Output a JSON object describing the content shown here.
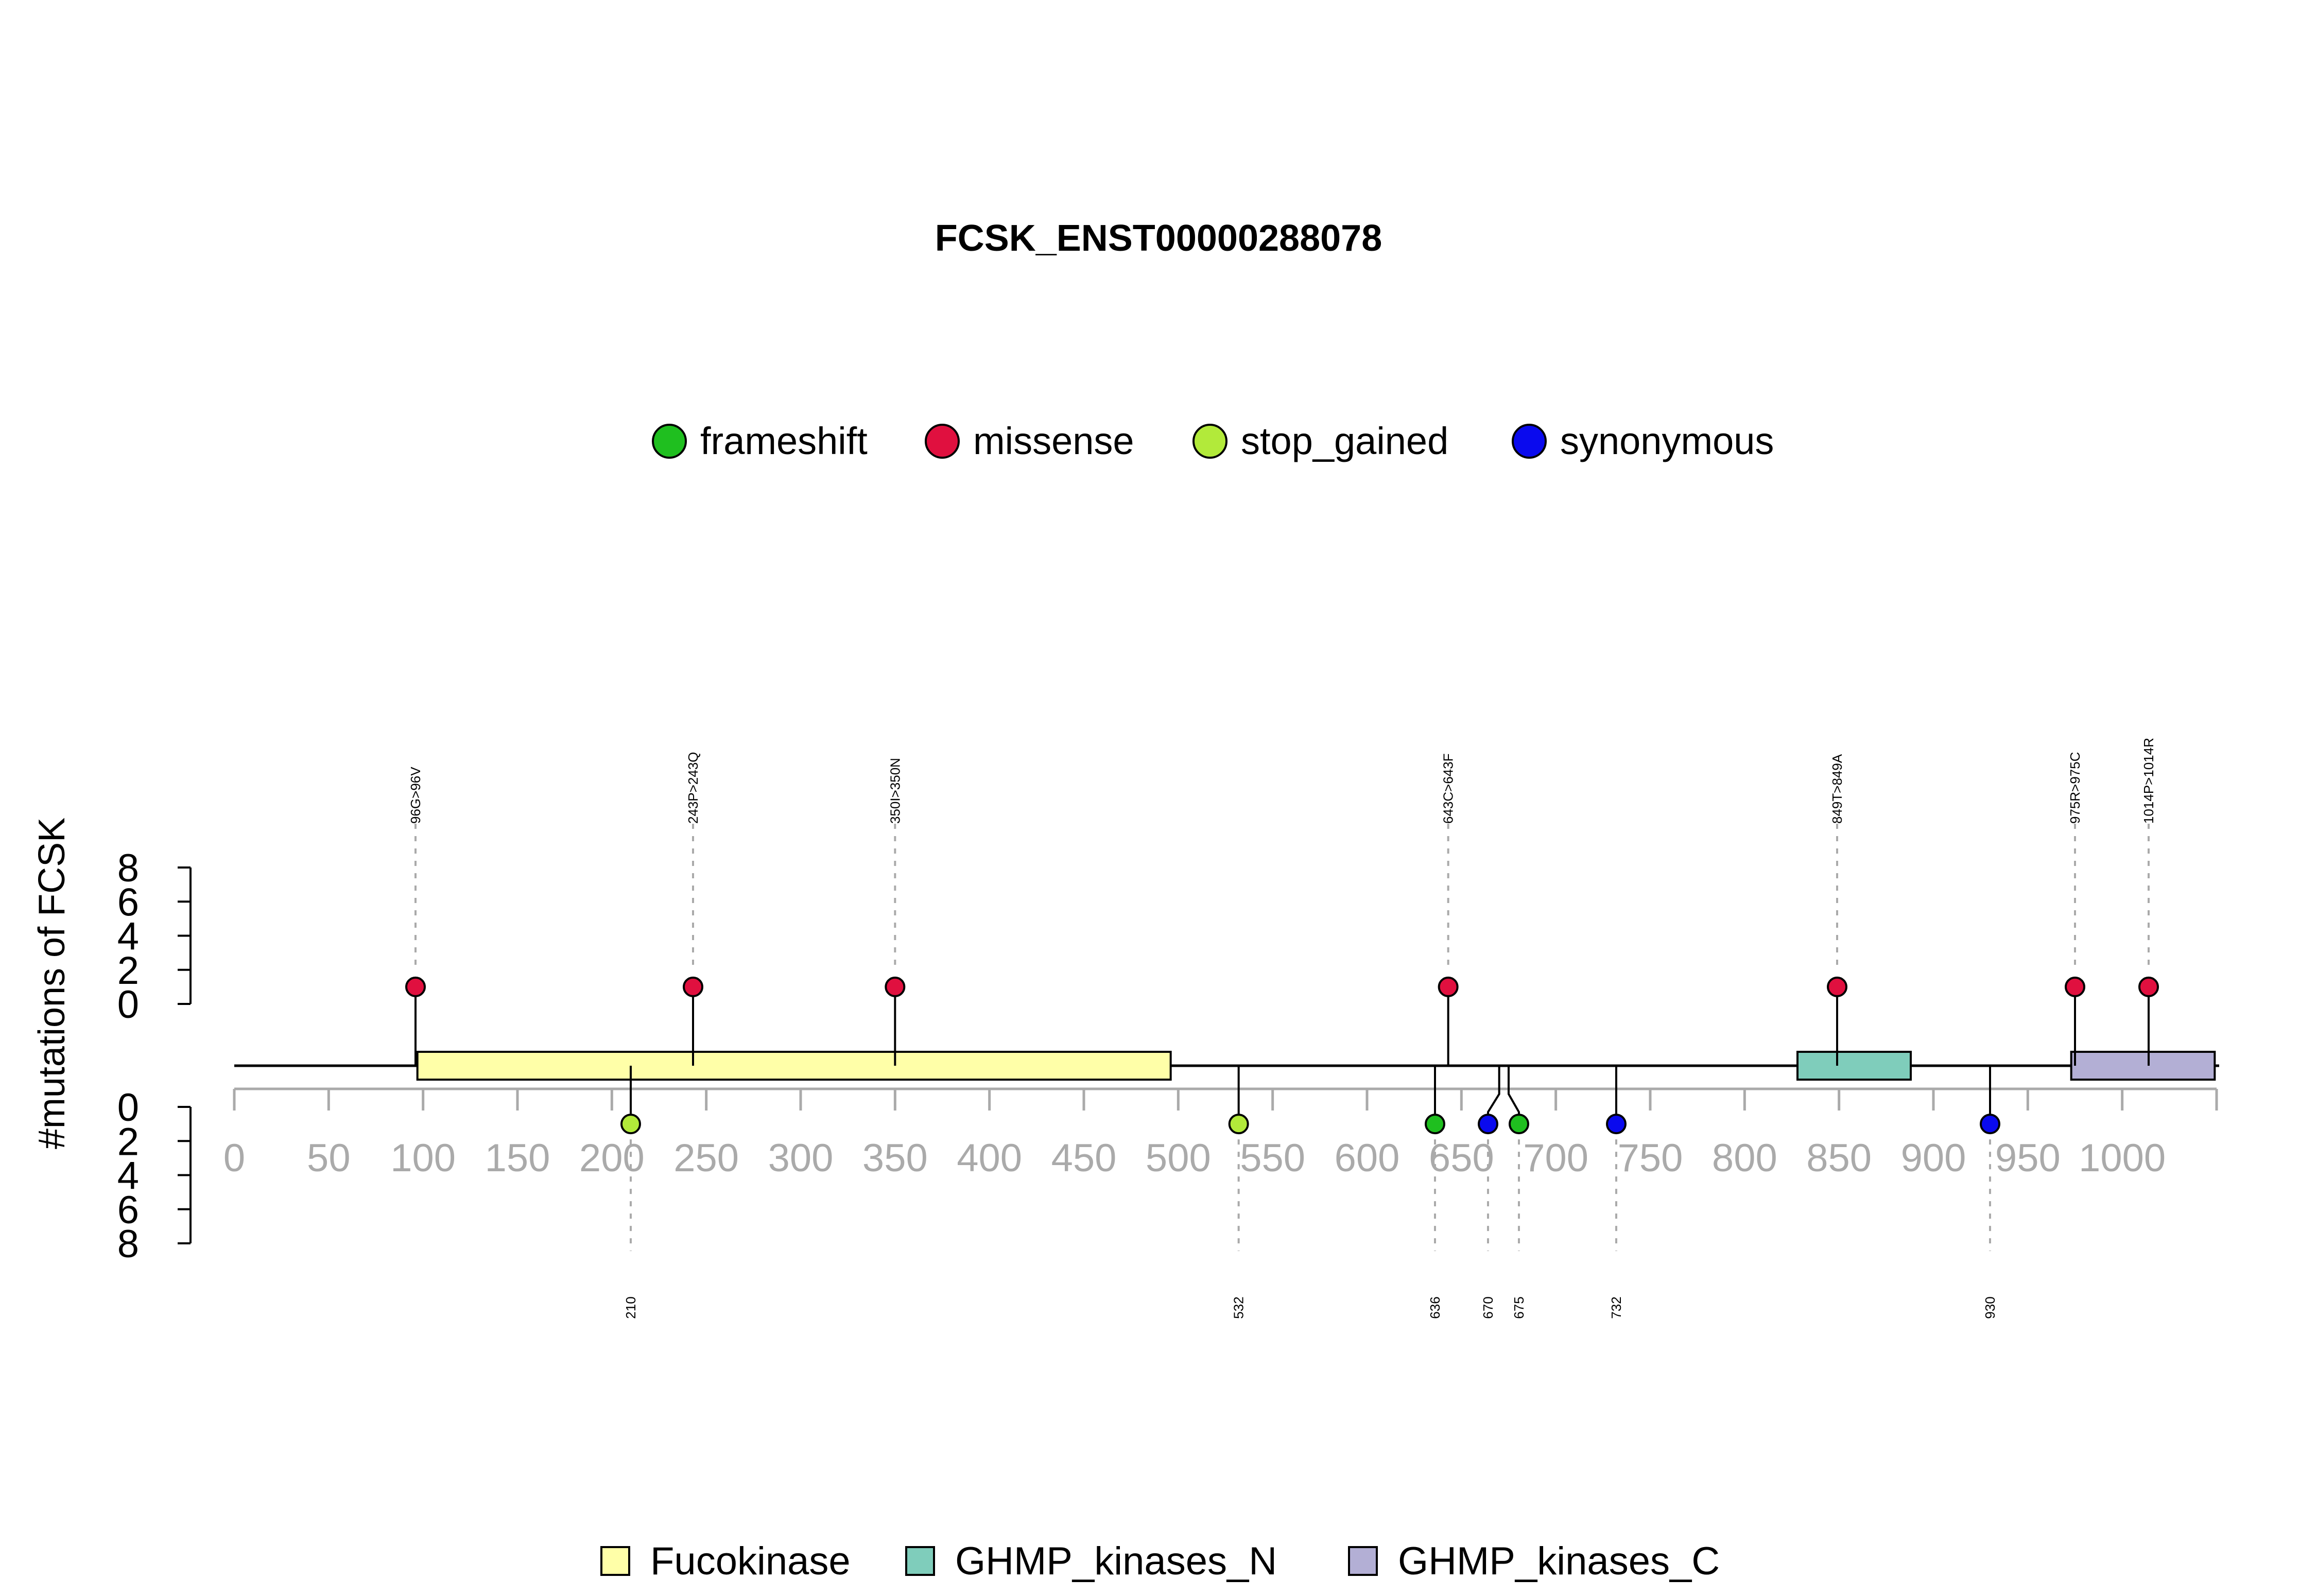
{
  "chart_data": {
    "type": "lollipop",
    "title": "FCSK_ENST00000288078",
    "ylabel": "#mutations of FCSK",
    "xlim": [
      0,
      1050
    ],
    "x_ticks": [
      0,
      50,
      100,
      150,
      200,
      250,
      300,
      350,
      400,
      450,
      500,
      550,
      600,
      650,
      700,
      750,
      800,
      850,
      900,
      950,
      1000
    ],
    "y_ticks": [
      0,
      2,
      4,
      6,
      8
    ],
    "y_range": [
      0,
      8
    ],
    "grid": false,
    "mutation_legend": [
      {
        "name": "frameshift",
        "color": "#1fbf1f"
      },
      {
        "name": "missense",
        "color": "#e0103f"
      },
      {
        "name": "stop_gained",
        "color": "#b2ea3a"
      },
      {
        "name": "synonymous",
        "color": "#0a0aee"
      }
    ],
    "domain_legend": [
      {
        "name": "Fucokinase",
        "color": "#ffffa8"
      },
      {
        "name": "GHMP_kinases_N",
        "color": "#7fcdbb"
      },
      {
        "name": "GHMP_kinases_C",
        "color": "#b3afd5"
      }
    ],
    "domains": [
      {
        "name": "Fucokinase",
        "start": 97,
        "end": 496
      },
      {
        "name": "GHMP_kinases_N",
        "start": 828,
        "end": 888
      },
      {
        "name": "GHMP_kinases_C",
        "start": 973,
        "end": 1049
      }
    ],
    "upper_mutations": [
      {
        "pos": 96,
        "count": 1,
        "label": "96G>96V",
        "type": "missense"
      },
      {
        "pos": 243,
        "count": 1,
        "label": "243P>243Q",
        "type": "missense"
      },
      {
        "pos": 350,
        "count": 1,
        "label": "350I>350N",
        "type": "missense"
      },
      {
        "pos": 643,
        "count": 1,
        "label": "643C>643F",
        "type": "missense"
      },
      {
        "pos": 849,
        "count": 1,
        "label": "849T>849A",
        "type": "missense"
      },
      {
        "pos": 975,
        "count": 1,
        "label": "975R>975C",
        "type": "missense"
      },
      {
        "pos": 1014,
        "count": 1,
        "label": "1014P>1014R",
        "type": "missense"
      }
    ],
    "lower_mutations": [
      {
        "pos": 210,
        "count": 1,
        "label": "210",
        "type": "stop_gained"
      },
      {
        "pos": 532,
        "count": 1,
        "label": "532",
        "type": "stop_gained"
      },
      {
        "pos": 636,
        "count": 1,
        "label": "636",
        "type": "frameshift"
      },
      {
        "pos": 670,
        "count": 1,
        "label": "670",
        "type": "synonymous"
      },
      {
        "pos": 675,
        "count": 1,
        "label": "675",
        "type": "frameshift"
      },
      {
        "pos": 732,
        "count": 1,
        "label": "732",
        "type": "synonymous"
      },
      {
        "pos": 930,
        "count": 1,
        "label": "930",
        "type": "synonymous"
      }
    ]
  }
}
